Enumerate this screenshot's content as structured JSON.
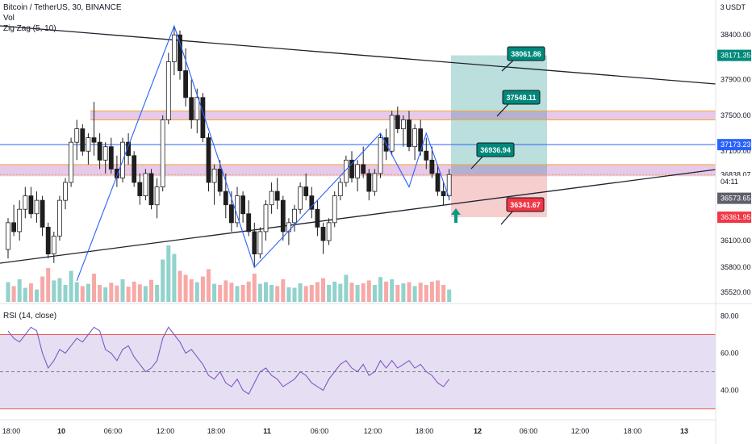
{
  "header": {
    "symbol": "Bitcoin / TetherUS, 30, BINANCE",
    "indicator1": "Vol",
    "indicator2": "Zig Zag (5, 10)",
    "rsi_label": "RSI (14, close)",
    "currency": "USDT",
    "currency_prefix": "3"
  },
  "colors": {
    "up": "#26a69a",
    "down": "#1e1e1e",
    "up_body": "#ffffff",
    "zigzag": "#2962ff",
    "trend": "#1e222d",
    "band": "#9c27b0",
    "target_box": "#3aa39a",
    "stop_box": "#e57373",
    "hline_blue": "#2962ff",
    "rsi_line": "#7e57c2",
    "rsi_band": "#d1c4e9",
    "rsi_bound": "#ef5350",
    "tag_teal": "#00897b",
    "tag_red": "#f23645",
    "tag_blue": "#2962ff",
    "tag_gray": "#5d606b"
  },
  "chart_data": {
    "type": "candlestick",
    "price_axis_ticks": [
      "38400.00",
      "37900.00",
      "37500.00",
      "37100.00",
      "36100.00",
      "35800.00",
      "35520.00"
    ],
    "time_axis_ticks": [
      "18:00",
      "10",
      "06:00",
      "12:00",
      "18:00",
      "11",
      "06:00",
      "12:00",
      "18:00",
      "12",
      "06:00",
      "12:00",
      "18:00",
      "13"
    ],
    "rsi_axis_ticks": [
      "80.00",
      "60.00",
      "40.00"
    ],
    "price_tags": [
      {
        "label": "38171.35",
        "color": "tag_teal"
      },
      {
        "label": "37173.23",
        "color": "tag_blue"
      },
      {
        "label": "36838.07",
        "color": "tag_white"
      },
      {
        "label": "04:11",
        "color": "tag_white"
      },
      {
        "label": "36573.65",
        "color": "tag_gray"
      },
      {
        "label": "36361.95",
        "color": "tag_red"
      }
    ],
    "callouts": [
      {
        "label": "38061.86",
        "color": "tag_teal"
      },
      {
        "label": "37548.11",
        "color": "tag_teal"
      },
      {
        "label": "36936.94",
        "color": "tag_teal"
      },
      {
        "label": "36341.67",
        "color": "tag_red"
      }
    ],
    "candles": [
      [
        36000,
        36350,
        35900,
        36300
      ],
      [
        36300,
        36500,
        36150,
        36200
      ],
      [
        36200,
        36550,
        36100,
        36450
      ],
      [
        36450,
        36700,
        36350,
        36600
      ],
      [
        36600,
        36700,
        36350,
        36400
      ],
      [
        36400,
        36650,
        36300,
        36550
      ],
      [
        36550,
        36600,
        36150,
        36250
      ],
      [
        36250,
        36300,
        35900,
        35950
      ],
      [
        35950,
        36200,
        35850,
        36150
      ],
      [
        36150,
        36600,
        36100,
        36550
      ],
      [
        36550,
        36800,
        36450,
        36750
      ],
      [
        36750,
        37250,
        36700,
        37200
      ],
      [
        37200,
        37450,
        37000,
        37350
      ],
      [
        37350,
        37400,
        37050,
        37100
      ],
      [
        37100,
        37300,
        36950,
        37250
      ],
      [
        37250,
        37650,
        37050,
        37200
      ],
      [
        37200,
        37300,
        36900,
        37000
      ],
      [
        37000,
        37200,
        36850,
        37150
      ],
      [
        37150,
        37250,
        36850,
        36900
      ],
      [
        36900,
        37050,
        36700,
        36800
      ],
      [
        36800,
        37250,
        36750,
        37200
      ],
      [
        37200,
        37300,
        36950,
        37050
      ],
      [
        37050,
        37100,
        36700,
        36750
      ],
      [
        36750,
        36850,
        36500,
        36600
      ],
      [
        36600,
        36900,
        36550,
        36850
      ],
      [
        36850,
        36900,
        36450,
        36500
      ],
      [
        36500,
        36800,
        36350,
        36700
      ],
      [
        36700,
        37500,
        36650,
        37450
      ],
      [
        37450,
        38200,
        37400,
        38100
      ],
      [
        38100,
        38500,
        37950,
        38400
      ],
      [
        38400,
        38450,
        37900,
        38000
      ],
      [
        38000,
        38250,
        37600,
        37700
      ],
      [
        37700,
        37900,
        37350,
        37450
      ],
      [
        37450,
        37800,
        37300,
        37700
      ],
      [
        37700,
        37750,
        37200,
        37250
      ],
      [
        37250,
        37300,
        36650,
        36750
      ],
      [
        36750,
        36950,
        36500,
        36900
      ],
      [
        36900,
        37000,
        36600,
        36650
      ],
      [
        36650,
        36850,
        36350,
        36500
      ],
      [
        36500,
        36650,
        36200,
        36300
      ],
      [
        36300,
        36700,
        36250,
        36600
      ],
      [
        36600,
        36650,
        36300,
        36400
      ],
      [
        36400,
        36550,
        36150,
        36200
      ],
      [
        36200,
        36300,
        35800,
        35950
      ],
      [
        35950,
        36250,
        35900,
        36200
      ],
      [
        36200,
        36550,
        36100,
        36500
      ],
      [
        36500,
        36750,
        36400,
        36650
      ],
      [
        36650,
        36800,
        36450,
        36550
      ],
      [
        36550,
        36600,
        36100,
        36200
      ],
      [
        36200,
        36350,
        36050,
        36300
      ],
      [
        36300,
        36500,
        36200,
        36450
      ],
      [
        36450,
        36750,
        36400,
        36700
      ],
      [
        36700,
        36850,
        36550,
        36600
      ],
      [
        36600,
        36700,
        36350,
        36450
      ],
      [
        36450,
        36550,
        36150,
        36250
      ],
      [
        36250,
        36300,
        35950,
        36100
      ],
      [
        36100,
        36350,
        36050,
        36300
      ],
      [
        36300,
        36650,
        36250,
        36600
      ],
      [
        36600,
        36800,
        36550,
        36750
      ],
      [
        36750,
        37050,
        36700,
        37000
      ],
      [
        37000,
        37100,
        36750,
        36800
      ],
      [
        36800,
        37000,
        36650,
        36950
      ],
      [
        36950,
        37150,
        36800,
        36850
      ],
      [
        36850,
        36900,
        36550,
        36650
      ],
      [
        36650,
        36900,
        36600,
        36850
      ],
      [
        36850,
        37300,
        36800,
        37250
      ],
      [
        37250,
        37350,
        37000,
        37100
      ],
      [
        37100,
        37550,
        37050,
        37500
      ],
      [
        37500,
        37600,
        37300,
        37350
      ],
      [
        37350,
        37500,
        37150,
        37450
      ],
      [
        37450,
        37550,
        37100,
        37150
      ],
      [
        37150,
        37400,
        37000,
        37350
      ],
      [
        37350,
        37450,
        37050,
        37100
      ],
      [
        37100,
        37250,
        36900,
        37000
      ],
      [
        37000,
        37150,
        36800,
        36850
      ],
      [
        36850,
        36950,
        36600,
        36650
      ],
      [
        36650,
        36750,
        36500,
        36600
      ],
      [
        36600,
        36900,
        36550,
        36838
      ]
    ],
    "volumes": [
      0.35,
      0.28,
      0.4,
      0.25,
      0.33,
      0.22,
      0.45,
      0.6,
      0.38,
      0.42,
      0.3,
      0.55,
      0.35,
      0.28,
      0.32,
      0.5,
      0.3,
      0.26,
      0.34,
      0.29,
      0.4,
      0.27,
      0.36,
      0.31,
      0.28,
      0.39,
      0.3,
      0.75,
      1.0,
      0.85,
      0.55,
      0.48,
      0.4,
      0.35,
      0.45,
      0.58,
      0.32,
      0.3,
      0.38,
      0.34,
      0.28,
      0.3,
      0.36,
      0.5,
      0.32,
      0.35,
      0.3,
      0.28,
      0.4,
      0.26,
      0.25,
      0.33,
      0.28,
      0.3,
      0.35,
      0.42,
      0.3,
      0.36,
      0.32,
      0.48,
      0.34,
      0.3,
      0.33,
      0.38,
      0.3,
      0.44,
      0.36,
      0.4,
      0.3,
      0.33,
      0.35,
      0.28,
      0.34,
      0.3,
      0.36,
      0.38,
      0.3,
      0.22
    ],
    "rsi": [
      72,
      68,
      66,
      70,
      74,
      72,
      60,
      52,
      56,
      62,
      60,
      64,
      68,
      66,
      70,
      74,
      72,
      62,
      60,
      56,
      62,
      64,
      58,
      54,
      50,
      52,
      56,
      68,
      74,
      70,
      66,
      60,
      62,
      58,
      54,
      48,
      46,
      50,
      44,
      42,
      46,
      40,
      38,
      44,
      50,
      52,
      48,
      46,
      42,
      44,
      46,
      50,
      48,
      44,
      42,
      40,
      46,
      50,
      54,
      56,
      52,
      50,
      54,
      48,
      50,
      56,
      52,
      56,
      52,
      54,
      56,
      52,
      54,
      50,
      48,
      44,
      42,
      46
    ],
    "zigzag_points": [
      [
        12,
        35650
      ],
      [
        29,
        38500
      ],
      [
        43,
        35800
      ],
      [
        65,
        37300
      ],
      [
        70,
        36700
      ],
      [
        73,
        37300
      ],
      [
        77,
        36573
      ]
    ]
  }
}
